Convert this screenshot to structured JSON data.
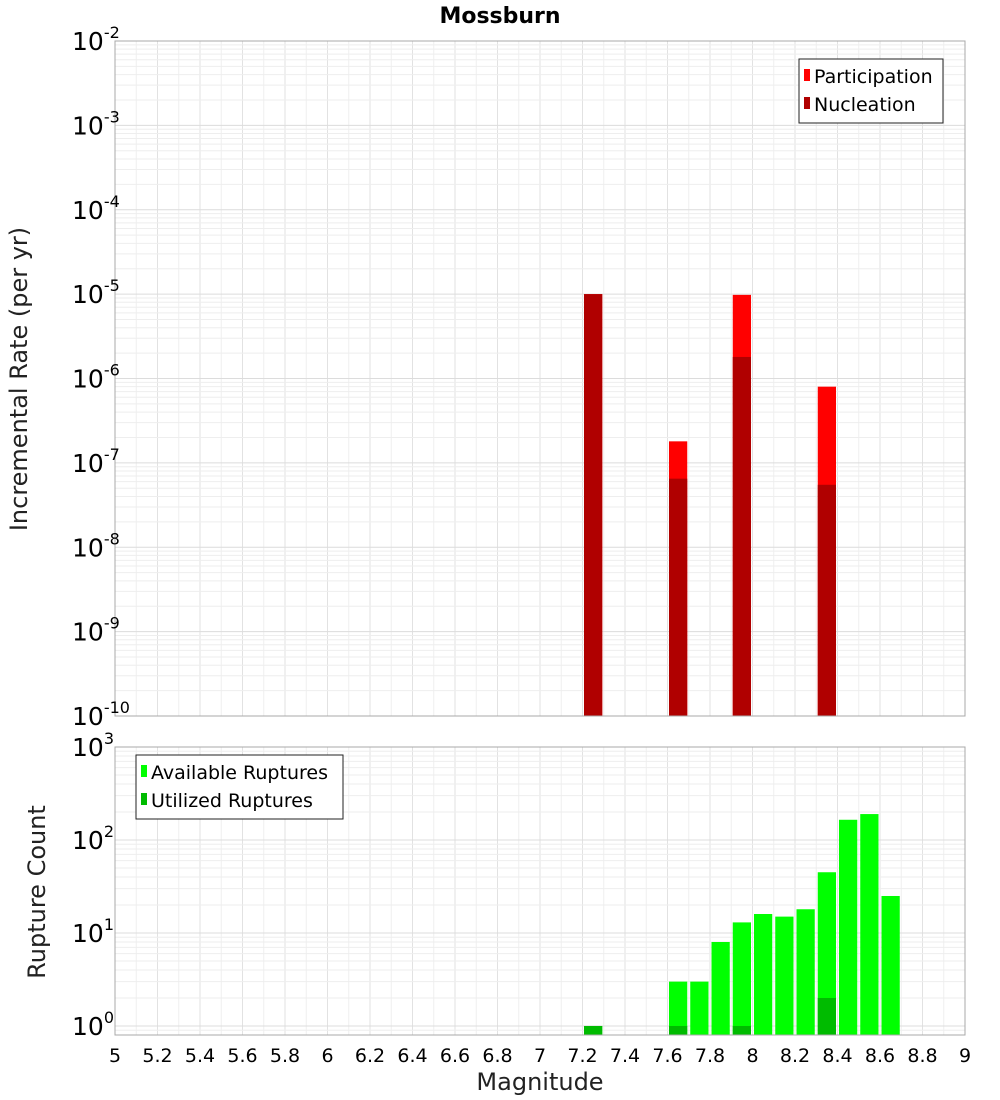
{
  "chart_data": [
    {
      "type": "bar",
      "title": "Mossburn",
      "xlabel": "",
      "ylabel": "Incremental Rate (per yr)",
      "xlim": [
        5,
        9
      ],
      "ylim": [
        1e-10,
        0.01
      ],
      "yscale": "log",
      "grid": true,
      "legend_position": "top-right",
      "y_tick_exponents": [
        -10,
        -9,
        -8,
        -7,
        -6,
        -5,
        -4,
        -3,
        -2
      ],
      "bin_width": 0.1,
      "series": [
        {
          "name": "Participation",
          "color": "#ff0000",
          "x": [
            7.25,
            7.65,
            7.95,
            8.35
          ],
          "values": [
            1e-05,
            1.8e-07,
            9.8e-06,
            8e-07
          ]
        },
        {
          "name": "Nucleation",
          "color": "#b00000",
          "x": [
            7.25,
            7.65,
            7.95,
            8.35
          ],
          "values": [
            1e-05,
            6.5e-08,
            1.8e-06,
            5.5e-08
          ]
        }
      ]
    },
    {
      "type": "bar",
      "title": "",
      "xlabel": "Magnitude",
      "ylabel": "Rupture Count",
      "xlim": [
        5,
        9
      ],
      "ylim": [
        0.8,
        1000
      ],
      "yscale": "log",
      "grid": true,
      "legend_position": "top-left",
      "y_tick_exponents": [
        0,
        1,
        2,
        3
      ],
      "x_ticks": [
        "5",
        "5.2",
        "5.4",
        "5.6",
        "5.8",
        "6",
        "6.2",
        "6.4",
        "6.6",
        "6.8",
        "7",
        "7.2",
        "7.4",
        "7.6",
        "7.8",
        "8",
        "8.2",
        "8.4",
        "8.6",
        "8.8",
        "9"
      ],
      "bin_width": 0.1,
      "series": [
        {
          "name": "Available Ruptures",
          "color": "#00ff00",
          "x": [
            7.25,
            7.65,
            7.75,
            7.85,
            7.95,
            8.05,
            8.15,
            8.25,
            8.35,
            8.45,
            8.55,
            8.65
          ],
          "values": [
            1,
            3,
            3,
            8,
            13,
            16,
            15,
            18,
            45,
            165,
            190,
            25
          ]
        },
        {
          "name": "Utilized Ruptures",
          "color": "#00bb00",
          "x": [
            7.25,
            7.65,
            7.95,
            8.35
          ],
          "values": [
            1,
            1,
            1,
            2
          ]
        }
      ]
    }
  ]
}
